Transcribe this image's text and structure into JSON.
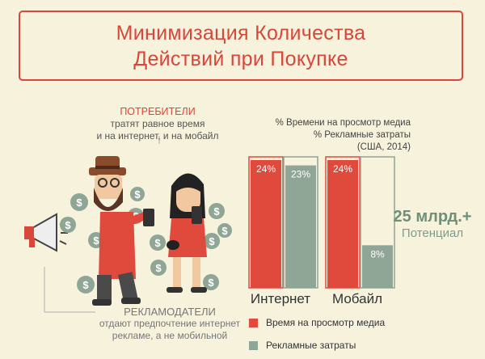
{
  "title": {
    "line1": "Минимизация Количества",
    "line2": "Действий при Покупке"
  },
  "consumers": {
    "head": "ПОТРЕБИТЕЛИ",
    "line1": "тратят равное время",
    "line2": "и на интернет, и на мобайл"
  },
  "advertisers": {
    "head": "РЕКЛАМОДАТЕЛИ",
    "line1": "отдают предпочтение интернет",
    "line2": "рекламе, а не мобильной"
  },
  "potential": {
    "value": "25 млрд.+",
    "label": "Потенциал"
  },
  "colors": {
    "red": "#e04a3c",
    "green": "#8fa595",
    "title": "#d9463a"
  },
  "chart_data": {
    "type": "bar",
    "title": "% Времени на просмотр медиа",
    "subtitle": "% Рекламные затраты",
    "note": "(США, 2014)",
    "categories": [
      "Интернет",
      "Мобайл"
    ],
    "ylim": [
      0,
      24
    ],
    "series": [
      {
        "name": "Время на просмотр медиа",
        "values": [
          24,
          24
        ],
        "labels": [
          "24%",
          "24%"
        ]
      },
      {
        "name": "Рекламные затраты",
        "values": [
          23,
          8
        ],
        "labels": [
          "23%",
          "8%"
        ]
      }
    ],
    "legend_position": "bottom"
  }
}
